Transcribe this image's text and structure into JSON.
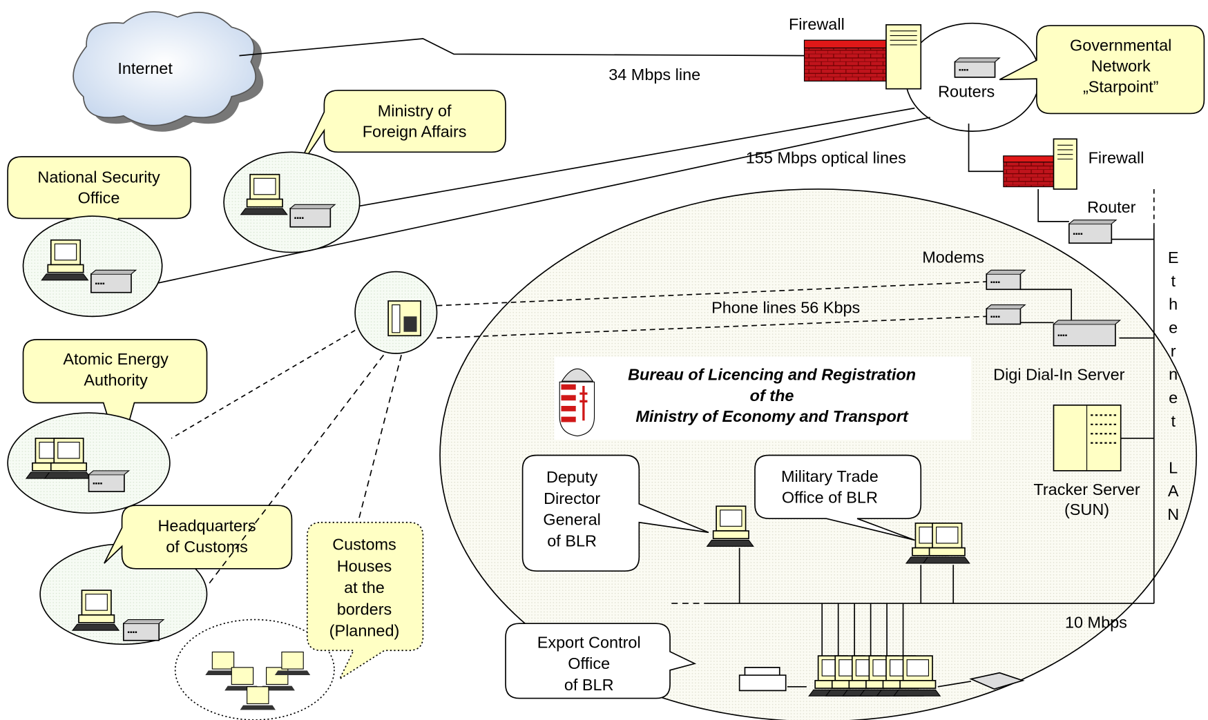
{
  "internet": "Internet",
  "firewall_top": "Firewall",
  "line_34": "34 Mbps line",
  "routers": "Routers",
  "starpoint": [
    "Governmental",
    "Network",
    "„Starpoint”"
  ],
  "foreign_affairs": [
    "Ministry of",
    "Foreign Affairs"
  ],
  "optical_lines": "155 Mbps optical lines",
  "firewall_inner": "Firewall",
  "national_security": [
    "National Security",
    "Office"
  ],
  "router": "Router",
  "modems": "Modems",
  "phone_lines": "Phone lines 56 Kbps",
  "dial_in": "Digi Dial-In Server",
  "ethernet_lan": "Ethernet LAN",
  "atomic_energy": [
    "Atomic Energy",
    "Authority"
  ],
  "bureau": [
    "Bureau of Licencing and Registration",
    "of the",
    "Ministry of Economy and Transport"
  ],
  "tracker": [
    "Tracker Server",
    "(SUN)"
  ],
  "deputy": [
    "Deputy",
    "Director",
    "General",
    "of BLR"
  ],
  "military_trade": [
    "Military Trade",
    "Office of BLR"
  ],
  "customs_hq": [
    "Headquarters",
    "of Customs"
  ],
  "customs_houses": [
    "Customs",
    "Houses",
    "at the",
    "borders",
    "(Planned)"
  ],
  "lan_speed": "10 Mbps",
  "export_control": [
    "Export Control",
    "Office",
    "of BLR"
  ]
}
